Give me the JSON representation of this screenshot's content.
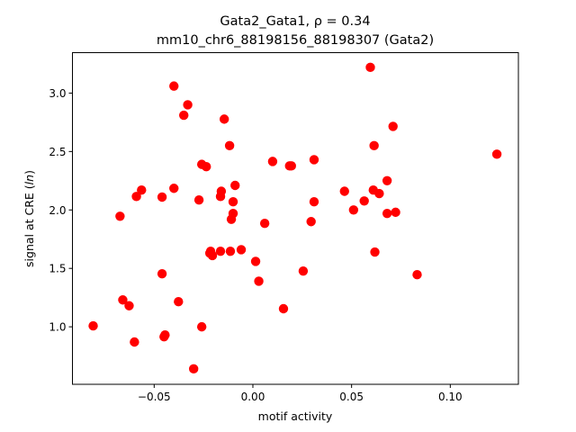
{
  "chart_data": {
    "type": "scatter",
    "title_line1": "Gata2_Gata1, ρ = 0.34",
    "title_line2": "mm10_chr6_88198156_88198307 (Gata2)",
    "xlabel": "motif activity",
    "ylabel_prefix": "signal at CRE (",
    "ylabel_italic": "ln",
    "ylabel_suffix": ")",
    "xlim": [
      -0.0914,
      0.1345
    ],
    "ylim": [
      0.508,
      3.346
    ],
    "xticks": [
      -0.05,
      0.0,
      0.05,
      0.1
    ],
    "xtick_labels": [
      "−0.05",
      "0.00",
      "0.05",
      "0.10"
    ],
    "yticks": [
      1.0,
      1.5,
      2.0,
      2.5,
      3.0
    ],
    "ytick_labels": [
      "1.0",
      "1.5",
      "2.0",
      "2.5",
      "3.0"
    ],
    "grid": false,
    "marker_color": "#ff0000",
    "points": [
      [
        -0.0809,
        1.008
      ],
      [
        -0.0673,
        1.946
      ],
      [
        -0.0659,
        1.23
      ],
      [
        -0.0627,
        1.18
      ],
      [
        -0.06,
        0.87
      ],
      [
        -0.059,
        2.115
      ],
      [
        -0.0564,
        2.17
      ],
      [
        -0.046,
        2.11
      ],
      [
        -0.046,
        1.454
      ],
      [
        -0.045,
        0.915
      ],
      [
        -0.0445,
        0.93
      ],
      [
        -0.04,
        3.06
      ],
      [
        -0.04,
        2.185
      ],
      [
        -0.0377,
        1.215
      ],
      [
        -0.035,
        2.81
      ],
      [
        -0.033,
        2.9
      ],
      [
        -0.03,
        0.64
      ],
      [
        -0.0273,
        2.085
      ],
      [
        -0.0259,
        2.39
      ],
      [
        -0.0259,
        1.0
      ],
      [
        -0.0236,
        2.37
      ],
      [
        -0.0218,
        1.63
      ],
      [
        -0.0214,
        1.646
      ],
      [
        -0.0205,
        1.61
      ],
      [
        -0.0164,
        1.646
      ],
      [
        -0.0164,
        2.115
      ],
      [
        -0.016,
        2.16
      ],
      [
        -0.0145,
        2.777
      ],
      [
        -0.0114,
        1.646
      ],
      [
        -0.0118,
        2.55
      ],
      [
        -0.0109,
        1.92
      ],
      [
        -0.01,
        2.07
      ],
      [
        -0.01,
        1.97
      ],
      [
        -0.009,
        2.21
      ],
      [
        -0.0059,
        1.66
      ],
      [
        0.0014,
        1.56
      ],
      [
        0.003,
        1.39
      ],
      [
        0.006,
        1.885
      ],
      [
        0.01,
        2.415
      ],
      [
        0.0155,
        1.155
      ],
      [
        0.0186,
        2.377
      ],
      [
        0.0195,
        2.377
      ],
      [
        0.0255,
        1.477
      ],
      [
        0.0295,
        1.9
      ],
      [
        0.031,
        2.07
      ],
      [
        0.031,
        2.43
      ],
      [
        0.0464,
        2.16
      ],
      [
        0.051,
        2.0
      ],
      [
        0.0564,
        2.077
      ],
      [
        0.0595,
        3.22
      ],
      [
        0.0614,
        2.55
      ],
      [
        0.061,
        2.17
      ],
      [
        0.0618,
        1.64
      ],
      [
        0.064,
        2.14
      ],
      [
        0.068,
        2.25
      ],
      [
        0.068,
        1.97
      ],
      [
        0.071,
        2.715
      ],
      [
        0.0723,
        1.98
      ],
      [
        0.0832,
        1.446
      ],
      [
        0.1236,
        2.477
      ]
    ]
  }
}
